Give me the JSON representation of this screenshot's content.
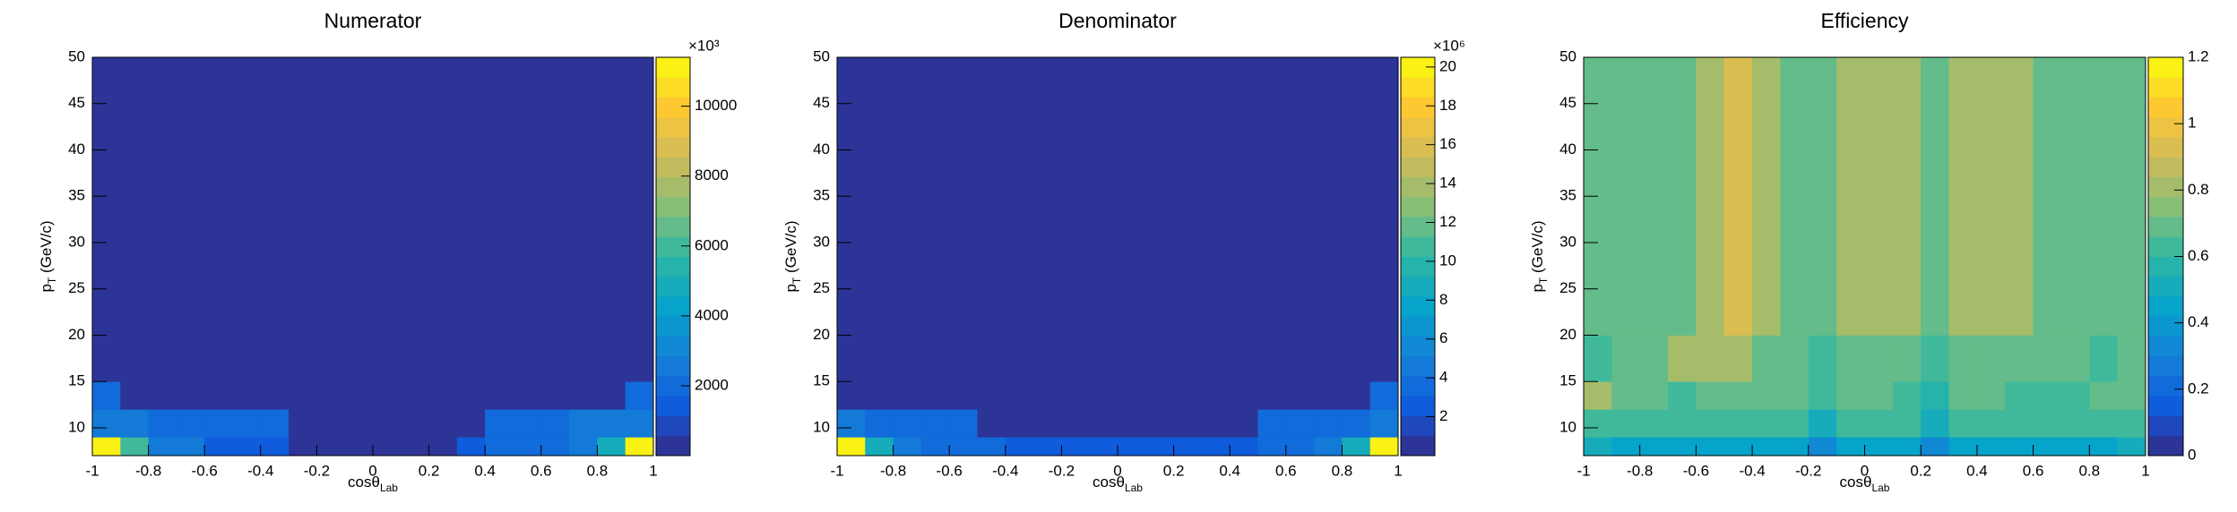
{
  "chart_data": [
    {
      "type": "heatmap",
      "title": "Numerator",
      "xlabel": {
        "main": "cosθ",
        "sub": "Lab"
      },
      "ylabel": {
        "main": "p",
        "sub": "T",
        "rest": " (GeV/c)"
      },
      "xbins": [
        -1,
        -0.9,
        -0.8,
        -0.7,
        -0.6,
        -0.5,
        -0.4,
        -0.3,
        -0.2,
        -0.1,
        0,
        0.1,
        0.2,
        0.3,
        0.4,
        0.5,
        0.6,
        0.7,
        0.8,
        0.9,
        1
      ],
      "ybins": [
        7,
        9,
        12,
        15,
        20,
        50
      ],
      "z": [
        [
          11000,
          6200,
          2300,
          2300,
          1500,
          1500,
          1500,
          400,
          400,
          400,
          400,
          400,
          400,
          1300,
          1800,
          1800,
          1800,
          2300,
          5000,
          11200
        ],
        [
          2800,
          2600,
          2000,
          1800,
          1800,
          1800,
          1800,
          400,
          400,
          400,
          400,
          400,
          400,
          400,
          1800,
          1800,
          1800,
          2300,
          2300,
          2800
        ],
        [
          1800,
          300,
          300,
          300,
          300,
          300,
          300,
          300,
          300,
          300,
          300,
          300,
          300,
          300,
          300,
          300,
          300,
          300,
          300,
          1800
        ],
        [
          150,
          150,
          150,
          150,
          150,
          150,
          150,
          150,
          150,
          150,
          150,
          150,
          150,
          150,
          150,
          150,
          150,
          150,
          150,
          150
        ],
        [
          150,
          150,
          150,
          150,
          150,
          150,
          150,
          150,
          150,
          150,
          150,
          150,
          150,
          150,
          150,
          150,
          150,
          150,
          150,
          150
        ]
      ],
      "xlim": [
        -1,
        1
      ],
      "ylim": [
        7,
        50
      ],
      "xticks": [
        -1,
        -0.8,
        -0.6,
        -0.4,
        -0.2,
        0,
        0.2,
        0.4,
        0.6,
        0.8,
        1
      ],
      "yticks": [
        10,
        15,
        20,
        25,
        30,
        35,
        40,
        45,
        50
      ],
      "zlim": [
        0,
        11400
      ],
      "zticks": [
        2000,
        4000,
        6000,
        8000,
        10000
      ],
      "zexp": "×10³",
      "palette": [
        "#352a87",
        "#0f5cdd",
        "#1481d6",
        "#06a4ca",
        "#2eb7a4",
        "#87bf77",
        "#d1bb59",
        "#fec832",
        "#f9fb0e"
      ],
      "contours": 20
    },
    {
      "type": "heatmap",
      "title": "Denominator",
      "xlabel": {
        "main": "cosθ",
        "sub": "Lab"
      },
      "ylabel": {
        "main": "p",
        "sub": "T",
        "rest": " (GeV/c)"
      },
      "xbins": [
        -1,
        -0.9,
        -0.8,
        -0.7,
        -0.6,
        -0.5,
        -0.4,
        -0.3,
        -0.2,
        -0.1,
        0,
        0.1,
        0.2,
        0.3,
        0.4,
        0.5,
        0.6,
        0.7,
        0.8,
        0.9,
        1
      ],
      "ybins": [
        7,
        9,
        12,
        15,
        20,
        50
      ],
      "z": [
        [
          20,
          9,
          4.5,
          4,
          3.5,
          3.5,
          2.5,
          2.5,
          2.5,
          2.5,
          2.5,
          2.5,
          2.5,
          2.5,
          2.5,
          3.5,
          4,
          4.5,
          9,
          20
        ],
        [
          5,
          4,
          3.5,
          3.5,
          3.5,
          1,
          1,
          1,
          1,
          1,
          1,
          1,
          1,
          1,
          1,
          3.5,
          3.5,
          3.5,
          4,
          5
        ],
        [
          1,
          0.5,
          0.5,
          0.5,
          0.5,
          0.5,
          0.5,
          0.5,
          0.5,
          0.5,
          0.5,
          0.5,
          0.5,
          0.5,
          0.5,
          0.5,
          0.5,
          0.5,
          0.5,
          3.5
        ],
        [
          0.3,
          0.3,
          0.3,
          0.3,
          0.3,
          0.3,
          0.3,
          0.3,
          0.3,
          0.3,
          0.3,
          0.3,
          0.3,
          0.3,
          0.3,
          0.3,
          0.3,
          0.3,
          0.3,
          0.3
        ],
        [
          0.3,
          0.3,
          0.3,
          0.3,
          0.3,
          0.3,
          0.3,
          0.3,
          0.3,
          0.3,
          0.3,
          0.3,
          0.3,
          0.3,
          0.3,
          0.3,
          0.3,
          0.3,
          0.3,
          0.3
        ]
      ],
      "xlim": [
        -1,
        1
      ],
      "ylim": [
        7,
        50
      ],
      "xticks": [
        -1,
        -0.8,
        -0.6,
        -0.4,
        -0.2,
        0,
        0.2,
        0.4,
        0.6,
        0.8,
        1
      ],
      "yticks": [
        10,
        15,
        20,
        25,
        30,
        35,
        40,
        45,
        50
      ],
      "zlim": [
        0,
        20.5
      ],
      "zticks": [
        2,
        4,
        6,
        8,
        10,
        12,
        14,
        16,
        18,
        20
      ],
      "zexp": "×10⁶",
      "palette": [
        "#352a87",
        "#0f5cdd",
        "#1481d6",
        "#06a4ca",
        "#2eb7a4",
        "#87bf77",
        "#d1bb59",
        "#fec832",
        "#f9fb0e"
      ],
      "contours": 20
    },
    {
      "type": "heatmap",
      "title": "Efficiency",
      "xlabel": {
        "main": "cosθ",
        "sub": "Lab"
      },
      "ylabel": {
        "main": "p",
        "sub": "T",
        "rest": " (GeV/c)"
      },
      "xbins": [
        -1,
        -0.9,
        -0.8,
        -0.7,
        -0.6,
        -0.5,
        -0.4,
        -0.3,
        -0.2,
        -0.1,
        0,
        0.1,
        0.2,
        0.3,
        0.4,
        0.5,
        0.6,
        0.7,
        0.8,
        0.9,
        1
      ],
      "ybins": [
        7,
        9,
        12,
        15,
        20,
        50
      ],
      "z": [
        [
          0.5,
          0.45,
          0.45,
          0.45,
          0.45,
          0.45,
          0.45,
          0.45,
          0.3,
          0.45,
          0.45,
          0.45,
          0.3,
          0.45,
          0.45,
          0.45,
          0.45,
          0.45,
          0.45,
          0.5
        ],
        [
          0.65,
          0.6,
          0.6,
          0.65,
          0.65,
          0.65,
          0.6,
          0.6,
          0.5,
          0.6,
          0.6,
          0.65,
          0.5,
          0.6,
          0.65,
          0.6,
          0.6,
          0.6,
          0.65,
          0.65
        ],
        [
          0.8,
          0.7,
          0.7,
          0.6,
          0.7,
          0.7,
          0.7,
          0.7,
          0.6,
          0.7,
          0.7,
          0.65,
          0.55,
          0.7,
          0.7,
          0.6,
          0.6,
          0.6,
          0.7,
          0.7
        ],
        [
          0.6,
          0.7,
          0.7,
          0.8,
          0.8,
          0.8,
          0.7,
          0.7,
          0.6,
          0.7,
          0.7,
          0.7,
          0.6,
          0.7,
          0.7,
          0.7,
          0.7,
          0.7,
          0.6,
          0.7
        ],
        [
          0.7,
          0.7,
          0.7,
          0.7,
          0.8,
          0.95,
          0.8,
          0.7,
          0.7,
          0.8,
          0.8,
          0.8,
          0.7,
          0.8,
          0.8,
          0.8,
          0.7,
          0.7,
          0.7,
          0.7
        ]
      ],
      "xlim": [
        -1,
        1
      ],
      "ylim": [
        7,
        50
      ],
      "xticks": [
        -1,
        -0.8,
        -0.6,
        -0.4,
        -0.2,
        0,
        0.2,
        0.4,
        0.6,
        0.8,
        1
      ],
      "yticks": [
        10,
        15,
        20,
        25,
        30,
        35,
        40,
        45,
        50
      ],
      "zlim": [
        0,
        1.2
      ],
      "zticks": [
        0,
        0.2,
        0.4,
        0.6,
        0.8,
        1,
        1.2
      ],
      "palette": [
        "#352a87",
        "#0f5cdd",
        "#1481d6",
        "#06a4ca",
        "#2eb7a4",
        "#87bf77",
        "#d1bb59",
        "#fec832",
        "#f9fb0e"
      ],
      "contours": 20
    }
  ]
}
